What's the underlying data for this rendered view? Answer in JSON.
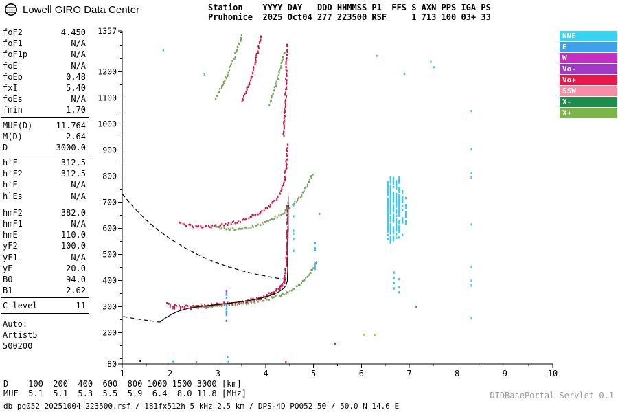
{
  "header": {
    "brand": "Lowell GIRO Data Center",
    "station_line1": "Station    YYYY DAY   DDD HHMMSS P1  FFS S AXN PPS IGA PS",
    "station_line2": "Pruhonice  2025 Oct04 277 223500 RSF     1 713 100 03+ 33"
  },
  "parameters": {
    "groups": [
      {
        "rows": [
          {
            "name": "foF2",
            "value": "4.450"
          },
          {
            "name": "foF1",
            "value": "N/A"
          },
          {
            "name": "foF1p",
            "value": "N/A"
          },
          {
            "name": "foE",
            "value": "N/A"
          },
          {
            "name": "foEp",
            "value": "0.48"
          },
          {
            "name": "fxI",
            "value": "5.40"
          },
          {
            "name": "foEs",
            "value": "N/A"
          },
          {
            "name": "fmin",
            "value": "1.70"
          }
        ],
        "separator_after": true
      },
      {
        "rows": [
          {
            "name": "MUF(D)",
            "value": "11.764"
          },
          {
            "name": "M(D)",
            "value": "2.64"
          },
          {
            "name": "D",
            "value": "3000.0"
          }
        ],
        "separator_after": true
      },
      {
        "rows": [
          {
            "name": "h`F",
            "value": "312.5"
          },
          {
            "name": "h`F2",
            "value": "312.5"
          },
          {
            "name": "h`E",
            "value": "N/A"
          },
          {
            "name": "h`Es",
            "value": "N/A"
          }
        ],
        "gap_after": true
      },
      {
        "rows": [
          {
            "name": "hmF2",
            "value": "382.0"
          },
          {
            "name": "hmF1",
            "value": "N/A"
          },
          {
            "name": "hmE",
            "value": "110.0"
          },
          {
            "name": "yF2",
            "value": "100.0"
          },
          {
            "name": "yF1",
            "value": "N/A"
          },
          {
            "name": "yE",
            "value": "20.0"
          },
          {
            "name": "B0",
            "value": "94.0"
          },
          {
            "name": "B1",
            "value": "2.62"
          }
        ],
        "separator_after": true
      },
      {
        "rows": [
          {
            "name": "C-level",
            "value": "11"
          }
        ],
        "separator_after": true
      }
    ],
    "auto_block": [
      "Auto:",
      "Artist5",
      "500200"
    ]
  },
  "legend": {
    "items": [
      {
        "label": "NNE",
        "color": "#38d3f0"
      },
      {
        "label": "E",
        "color": "#3fa0ee"
      },
      {
        "label": "W",
        "color": "#c32ec3"
      },
      {
        "label": "Vo-",
        "color": "#a238c8"
      },
      {
        "label": "Vo+",
        "color": "#e8194a"
      },
      {
        "label": "SSW",
        "color": "#f78da7"
      },
      {
        "label": "X-",
        "color": "#1f8b4d"
      },
      {
        "label": "X+",
        "color": "#7ab648"
      }
    ]
  },
  "chart_data": {
    "type": "scatter",
    "title": "Pruhonice ionogram 2025 Oct04 223500",
    "xlabel": "[MHz]",
    "ylabel": "[km]",
    "xlim": [
      1,
      10
    ],
    "ylim": [
      80,
      1357
    ],
    "x_ticks": [
      1,
      2,
      3,
      4,
      5,
      6,
      7,
      8,
      9,
      10
    ],
    "y_ticks": [
      1357,
      1200,
      1100,
      1000,
      900,
      800,
      700,
      600,
      500,
      400,
      300,
      200,
      80
    ],
    "grid": false,
    "legend_position": "top-right",
    "series": [
      {
        "name": "o-trace-1st-hop",
        "color": "#cf1745",
        "weight": 2,
        "points": [
          [
            1.95,
            309
          ],
          [
            2.05,
            304
          ],
          [
            2.15,
            301
          ],
          [
            2.3,
            300
          ],
          [
            2.45,
            301
          ],
          [
            2.6,
            303
          ],
          [
            2.75,
            305
          ],
          [
            2.9,
            307
          ],
          [
            3.05,
            310
          ],
          [
            3.2,
            313
          ],
          [
            3.35,
            316
          ],
          [
            3.5,
            320
          ],
          [
            3.65,
            325
          ],
          [
            3.8,
            331
          ],
          [
            3.95,
            339
          ],
          [
            4.1,
            350
          ],
          [
            4.2,
            361
          ],
          [
            4.3,
            376
          ],
          [
            4.37,
            396
          ],
          [
            4.41,
            425
          ],
          [
            4.43,
            465
          ],
          [
            4.44,
            515
          ],
          [
            4.45,
            575
          ],
          [
            4.455,
            635
          ],
          [
            4.46,
            700
          ]
        ]
      },
      {
        "name": "x-trace-1st-hop",
        "color": "#76a35c",
        "weight": 1,
        "points": [
          [
            2.5,
            298
          ],
          [
            2.65,
            298
          ],
          [
            2.8,
            299
          ],
          [
            2.95,
            301
          ],
          [
            3.1,
            303
          ],
          [
            3.25,
            306
          ],
          [
            3.4,
            309
          ],
          [
            3.55,
            312
          ],
          [
            3.7,
            316
          ],
          [
            3.85,
            321
          ],
          [
            4.0,
            327
          ],
          [
            4.15,
            334
          ],
          [
            4.3,
            343
          ],
          [
            4.45,
            355
          ],
          [
            4.6,
            370
          ],
          [
            4.75,
            390
          ],
          [
            4.85,
            408
          ],
          [
            4.95,
            430
          ],
          [
            5.02,
            455
          ],
          [
            5.08,
            480
          ]
        ]
      },
      {
        "name": "o-trace-2nd-hop",
        "color": "#cf1745",
        "weight": 1,
        "points": [
          [
            2.2,
            618
          ],
          [
            2.35,
            612
          ],
          [
            2.5,
            608
          ],
          [
            2.7,
            606
          ],
          [
            2.9,
            608
          ],
          [
            3.1,
            613
          ],
          [
            3.3,
            620
          ],
          [
            3.5,
            630
          ],
          [
            3.7,
            644
          ],
          [
            3.9,
            662
          ],
          [
            4.05,
            682
          ],
          [
            4.2,
            708
          ],
          [
            4.3,
            736
          ],
          [
            4.38,
            772
          ],
          [
            4.42,
            820
          ],
          [
            4.44,
            875
          ],
          [
            4.45,
            930
          ]
        ]
      },
      {
        "name": "x-trace-2nd-hop",
        "color": "#76a35c",
        "weight": 1,
        "points": [
          [
            2.95,
            604
          ],
          [
            3.15,
            598
          ],
          [
            3.35,
            596
          ],
          [
            3.55,
            600
          ],
          [
            3.75,
            608
          ],
          [
            3.95,
            620
          ],
          [
            4.15,
            636
          ],
          [
            4.35,
            658
          ],
          [
            4.55,
            686
          ],
          [
            4.72,
            722
          ],
          [
            4.88,
            768
          ],
          [
            5.0,
            815
          ]
        ]
      },
      {
        "name": "o-trace-3rd-hop-arc",
        "color": "#cf1745",
        "weight": 1,
        "points": [
          [
            3.5,
            1085
          ],
          [
            3.58,
            1120
          ],
          [
            3.66,
            1160
          ],
          [
            3.74,
            1205
          ],
          [
            3.8,
            1250
          ],
          [
            3.86,
            1300
          ],
          [
            3.9,
            1345
          ]
        ]
      },
      {
        "name": "o-trace-3rd-hop-asymptote",
        "color": "#cf1745",
        "weight": 1,
        "points": [
          [
            4.37,
            955
          ],
          [
            4.39,
            1010
          ],
          [
            4.41,
            1070
          ],
          [
            4.42,
            1130
          ],
          [
            4.43,
            1190
          ],
          [
            4.44,
            1255
          ],
          [
            4.45,
            1315
          ]
        ]
      },
      {
        "name": "x-trace-3rd-hop-arc",
        "color": "#76a35c",
        "weight": 1,
        "points": [
          [
            2.95,
            1095
          ],
          [
            3.05,
            1130
          ],
          [
            3.15,
            1170
          ],
          [
            3.25,
            1215
          ],
          [
            3.35,
            1262
          ],
          [
            3.45,
            1310
          ],
          [
            3.52,
            1345
          ]
        ]
      },
      {
        "name": "x-trace-3rd-hop-right",
        "color": "#76a35c",
        "weight": 1,
        "points": [
          [
            4.08,
            1075
          ],
          [
            4.16,
            1120
          ],
          [
            4.24,
            1170
          ],
          [
            4.32,
            1225
          ],
          [
            4.4,
            1285
          ]
        ]
      }
    ],
    "columns": [
      {
        "x": 6.55,
        "from": 560,
        "to": 790,
        "color": "#3cc8e8",
        "step": 7,
        "density": 0.85
      },
      {
        "x": 6.61,
        "from": 545,
        "to": 800,
        "color": "#3cc8e8",
        "step": 7,
        "density": 0.9
      },
      {
        "x": 6.67,
        "from": 555,
        "to": 795,
        "color": "#3cc8e8",
        "step": 7,
        "density": 0.8
      },
      {
        "x": 6.73,
        "from": 550,
        "to": 785,
        "color": "#3cc8e8",
        "step": 7,
        "density": 0.85
      },
      {
        "x": 6.79,
        "from": 565,
        "to": 800,
        "color": "#3cc8e8",
        "step": 7,
        "density": 0.75
      },
      {
        "x": 6.86,
        "from": 575,
        "to": 760,
        "color": "#3cc8e8",
        "step": 8,
        "density": 0.6
      },
      {
        "x": 6.93,
        "from": 590,
        "to": 730,
        "color": "#3cc8e8",
        "step": 9,
        "density": 0.45
      },
      {
        "x": 6.68,
        "from": 340,
        "to": 430,
        "color": "#3cc8e8",
        "step": 10,
        "density": 0.35
      },
      {
        "x": 6.78,
        "from": 355,
        "to": 420,
        "color": "#3cc8e8",
        "step": 10,
        "density": 0.3
      },
      {
        "x": 5.03,
        "from": 445,
        "to": 560,
        "color": "#3cc8e8",
        "step": 9,
        "density": 0.4
      },
      {
        "x": 5.1,
        "from": 470,
        "to": 545,
        "color": "#3fa0ee",
        "step": 10,
        "density": 0.3
      },
      {
        "x": 3.18,
        "from": 262,
        "to": 352,
        "color": "#3fa0ee",
        "step": 6,
        "density": 0.55
      },
      {
        "x": 8.3,
        "from": 255,
        "to": 960,
        "color": "#55c8e8",
        "step": 18,
        "density": 0.35
      },
      {
        "x": 4.58,
        "from": 470,
        "to": 690,
        "color": "#3cc8e8",
        "step": 11,
        "density": 0.3
      }
    ],
    "noise_points": [
      [
        1.38,
        92,
        "#000000"
      ],
      [
        2.06,
        90,
        "#3cc8e8"
      ],
      [
        2.55,
        88,
        "#76a35c"
      ],
      [
        3.2,
        108,
        "#3fa0ee"
      ],
      [
        3.22,
        90,
        "#3fa0ee"
      ],
      [
        4.42,
        88,
        "#a238c8"
      ],
      [
        5.45,
        155,
        "#a238c8"
      ],
      [
        6.05,
        192,
        "#b8cc33"
      ],
      [
        6.28,
        190,
        "#b8cc33"
      ],
      [
        7.15,
        300,
        "#1f8b4d"
      ],
      [
        6.9,
        1192,
        "#3cc8e8"
      ],
      [
        7.45,
        1238,
        "#3cc8e8"
      ],
      [
        7.52,
        1218,
        "#3cc8e8"
      ],
      [
        6.33,
        1262,
        "#3cc8e8"
      ],
      [
        1.86,
        1283,
        "#3cc8e8"
      ],
      [
        2.72,
        1190,
        "#3cc8e8"
      ],
      [
        8.3,
        1050,
        "#3cc8e8"
      ],
      [
        5.12,
        655,
        "#3fa0ee"
      ],
      [
        3.18,
        360,
        "#c32ec3"
      ],
      [
        3.18,
        245,
        "#a238c8"
      ]
    ],
    "lines": [
      {
        "name": "muf-transmission-curve",
        "style": "dashed",
        "color": "#000000",
        "points": [
          [
            1.0,
            732
          ],
          [
            1.25,
            678
          ],
          [
            1.5,
            632
          ],
          [
            1.75,
            593
          ],
          [
            2.0,
            560
          ],
          [
            2.3,
            526
          ],
          [
            2.6,
            497
          ],
          [
            2.9,
            473
          ],
          [
            3.2,
            453
          ],
          [
            3.5,
            437
          ],
          [
            3.8,
            424
          ],
          [
            4.1,
            413
          ],
          [
            4.3,
            407
          ],
          [
            4.45,
            403
          ]
        ]
      },
      {
        "name": "profile-extrapolation",
        "style": "dashed",
        "color": "#000000",
        "points": [
          [
            1.02,
            262
          ],
          [
            1.2,
            256
          ],
          [
            1.4,
            250
          ],
          [
            1.6,
            245
          ],
          [
            1.78,
            240
          ]
        ]
      },
      {
        "name": "true-height-profile",
        "style": "solid",
        "color": "#000000",
        "points": [
          [
            1.78,
            240
          ],
          [
            1.9,
            256
          ],
          [
            2.05,
            272
          ],
          [
            2.2,
            284
          ],
          [
            2.4,
            294
          ],
          [
            2.6,
            300
          ],
          [
            2.9,
            306
          ],
          [
            3.2,
            312
          ],
          [
            3.5,
            319
          ],
          [
            3.8,
            328
          ],
          [
            4.05,
            340
          ],
          [
            4.25,
            354
          ],
          [
            4.35,
            366
          ],
          [
            4.42,
            380
          ],
          [
            4.45,
            398
          ],
          [
            4.46,
            440
          ],
          [
            4.465,
            520
          ],
          [
            4.47,
            620
          ],
          [
            4.47,
            725
          ]
        ]
      }
    ],
    "d_muf_table": {
      "distances_km": [
        100,
        200,
        400,
        600,
        800,
        1000,
        1500,
        3000
      ],
      "muf_mhz": [
        5.1,
        5.1,
        5.3,
        5.5,
        5.9,
        6.4,
        8.0,
        11.8
      ]
    }
  },
  "footer": {
    "d_row": "D    100  200  400  600  800 1000 1500 3000 [km]",
    "muf_row": "MUF  5.1  5.1  5.3  5.5  5.9  6.4  8.0 11.8 [MHz]",
    "status": "db pq052 20251004 223500.rsf / 181fx512h 5 kHz 2.5 km / DPS-4D PQ052 50 / 50.0 N 14.6 E",
    "servlet": "DIDBasePortal_Servlet 0.1"
  }
}
